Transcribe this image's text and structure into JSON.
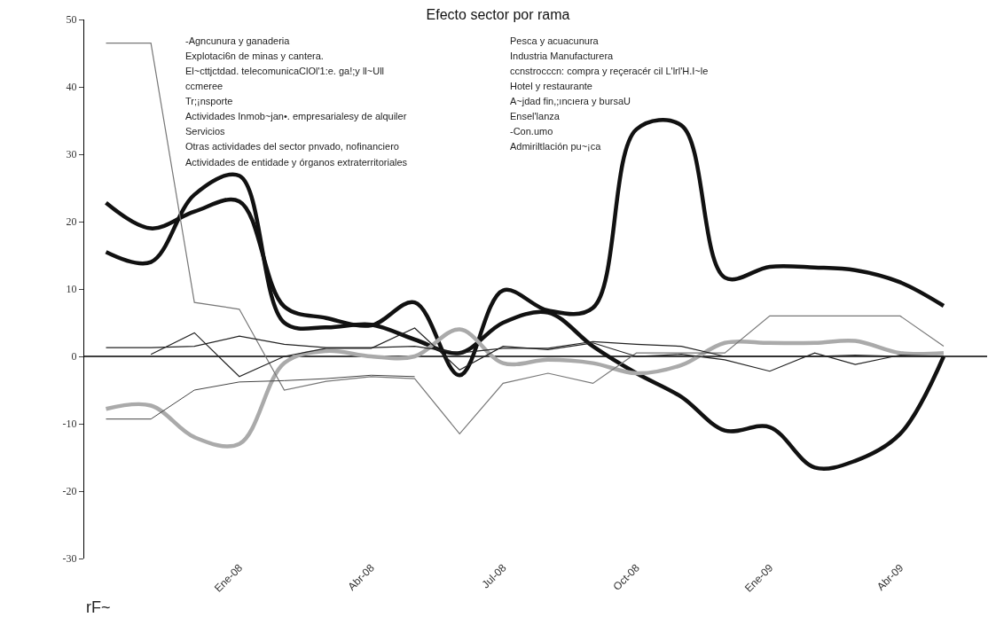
{
  "chart_data": {
    "type": "line",
    "title": "Efecto sector por rama",
    "x": [
      "2007-10",
      "2007-11",
      "2007-12",
      "2008-01",
      "2008-02",
      "2008-03",
      "2008-04",
      "2008-05",
      "2008-06",
      "2008-07",
      "2008-08",
      "2008-09",
      "2008-10",
      "2008-11",
      "2008-12",
      "2009-01",
      "2009-02",
      "2009-03",
      "2009-04",
      "2009-05"
    ],
    "series": [
      {
        "color": "#111111",
        "values": [
          22.8,
          19,
          21.5,
          23,
          7.4,
          5.7,
          4.6,
          8,
          -2.8,
          9.8,
          6.8,
          7.2,
          33.7,
          34.3,
          11.7,
          13.3,
          13.2,
          12.8,
          11,
          7.5
        ]
      },
      {
        "color": "#111111",
        "values": [
          15.5,
          14,
          24,
          26.8,
          5,
          4.3,
          4.7,
          2.5,
          0.5,
          5,
          6.5,
          1.5,
          -2.5,
          -6,
          -11,
          -10.5,
          -16.5,
          -15.5,
          -11.5,
          0
        ]
      },
      {
        "color": "#aaaaaa",
        "values": [
          -7.8,
          -7.3,
          -12,
          -13,
          -1,
          0.8,
          0,
          0,
          4,
          -1,
          -0.5,
          -1,
          -2.5,
          -1.3,
          2,
          2,
          2,
          2.3,
          0.5,
          0.5
        ]
      },
      {
        "color": "#777777",
        "values": [
          46.5,
          46.5,
          8,
          7,
          -5,
          -3.7,
          -3,
          -3.3,
          -11.5,
          -4,
          -2.5,
          -4,
          0.5,
          0.5,
          0.5,
          6,
          6,
          6,
          6,
          1.5
        ]
      },
      {
        "color": "#222222",
        "values": [
          null,
          0.3,
          3.5,
          -3,
          0,
          1.2,
          1.2,
          4.2,
          -2,
          1.5,
          1,
          2,
          0,
          0.3,
          -0.5,
          -2.2,
          0.5,
          -1.2,
          0.2,
          0
        ]
      },
      {
        "color": "#222222",
        "values": [
          1.3,
          1.3,
          1.5,
          3,
          1.8,
          1.3,
          1.3,
          1.5,
          0.5,
          1.2,
          1.2,
          2.2,
          1.8,
          1.5,
          0,
          0,
          0,
          0.2,
          0,
          0
        ]
      },
      {
        "color": "#444444",
        "values": [
          -9.3,
          -9.3,
          -5,
          -3.8,
          -3.6,
          -3.3,
          -2.8,
          -3,
          null,
          null,
          null,
          null,
          null,
          null,
          null,
          null,
          null,
          null,
          null,
          null
        ]
      }
    ],
    "xlim": [
      "2007-09-16",
      "2009-05-31"
    ],
    "xticks": [
      {
        "value": "2008-01",
        "label": "Ene-08"
      },
      {
        "value": "2008-04",
        "label": "Abr-08"
      },
      {
        "value": "2008-07",
        "label": "Jul-08"
      },
      {
        "value": "2008-10",
        "label": "Oct-08"
      },
      {
        "value": "2009-01",
        "label": "Ene-09"
      },
      {
        "value": "2009-04",
        "label": "Abr-09"
      }
    ],
    "ylim": [
      -30,
      50
    ],
    "yticks": [
      -30,
      -20,
      -10,
      0,
      10,
      20,
      30,
      40,
      50
    ],
    "ref_lines": [
      {
        "axis": "y",
        "value": 0,
        "color": "#000000"
      }
    ],
    "grid": false,
    "annotations": [
      "-Agncunura y ganaderia",
      "Explotaci6n de minas y cantera.",
      "El~cttjctdad. telecomunicaClOl'1:e. ga!;y ll~Ull",
      "ccmeree",
      "Tr;¡nsporte",
      "Actividades Inmob~jan•. empresarialesy de alquiler",
      "Servicios",
      "Otras actividades del sector pnvado, nofinanciero",
      "Actividades de entidade y órganos extraterritoriales",
      "Pesca y acuacunura",
      "Industria Manufacturera",
      "ccnstrocccn: compra y reçeracér cil L'lrl'H.I~le",
      "Hotel y restaurante",
      "A~jdad fin,;ıncıera y bursaU",
      "Ensel'lanza",
      "-Con.umo",
      "Admiriltlación pu~¡ca",
      "rF~"
    ]
  }
}
